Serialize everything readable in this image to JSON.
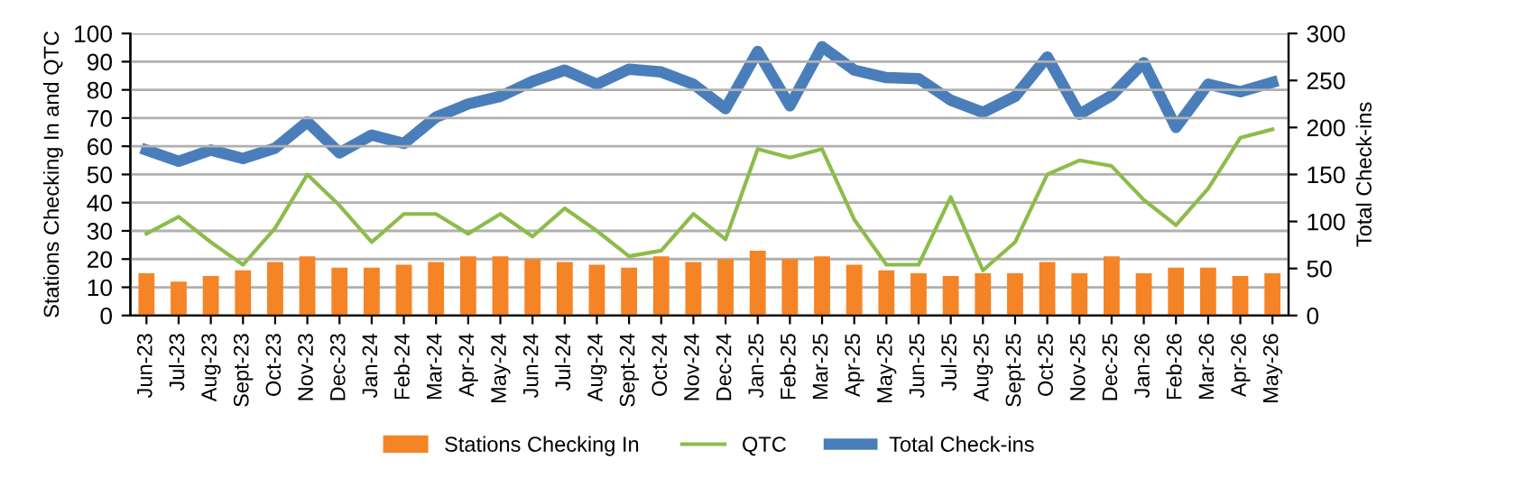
{
  "chart_data": {
    "type": "bar",
    "ylabel": "Stations Checking In and QTC",
    "y2label": "Total Check-ins",
    "categories": [
      "Jun-23",
      "Jul-23",
      "Aug-23",
      "Sept-23",
      "Oct-23",
      "Nov-23",
      "Dec-23",
      "Jan-24",
      "Feb-24",
      "Mar-24",
      "Apr-24",
      "May-24",
      "Jun-24",
      "Jul-24",
      "Aug-24",
      "Sept-24",
      "Oct-24",
      "Nov-24",
      "Dec-24",
      "Jan-25",
      "Feb-25",
      "Mar-25",
      "Apr-25",
      "May-25",
      "Jun-25",
      "Jul-25",
      "Aug-25",
      "Sept-25",
      "Oct-25",
      "Nov-25",
      "Dec-25",
      "Jan-26",
      "Feb-26",
      "Mar-26",
      "Apr-26",
      "May-26"
    ],
    "series": [
      {
        "name": "Stations Checking In",
        "color": "#f58426",
        "values": [
          15,
          12,
          14,
          16,
          19,
          21,
          17,
          17,
          18,
          19,
          21,
          21,
          20,
          19,
          18,
          17,
          21,
          19,
          20,
          23,
          20,
          21,
          18,
          16,
          15,
          14,
          15,
          15,
          19,
          15,
          21,
          15,
          17,
          17,
          14,
          15
        ]
      },
      {
        "name": "QTC",
        "type": "line",
        "color": "#8cbc4a",
        "values": [
          29,
          35,
          26,
          18,
          31,
          50,
          39,
          26,
          36,
          36,
          29,
          36,
          28,
          38,
          30,
          21,
          23,
          36,
          27,
          59,
          56,
          59,
          34,
          18,
          18,
          42,
          16,
          26,
          50,
          55,
          53,
          41,
          32,
          45,
          63,
          66
        ]
      },
      {
        "name": "Total Check-ins",
        "type": "line",
        "axis": "y2",
        "color": "#4a7ebb",
        "values": [
          176,
          164,
          176,
          167,
          178,
          206,
          173,
          192,
          183,
          211,
          225,
          233,
          249,
          261,
          246,
          262,
          259,
          246,
          220,
          281,
          223,
          286,
          261,
          253,
          252,
          229,
          216,
          233,
          275,
          214,
          234,
          269,
          200,
          246,
          238,
          248
        ]
      }
    ],
    "ylim": [
      0,
      100
    ],
    "yticks": [
      0,
      10,
      20,
      30,
      40,
      50,
      60,
      70,
      80,
      90,
      100
    ],
    "y2lim": [
      0,
      300
    ],
    "y2ticks": [
      0,
      50,
      100,
      150,
      200,
      250,
      300
    ],
    "grid": "y",
    "legend": "bottom"
  }
}
